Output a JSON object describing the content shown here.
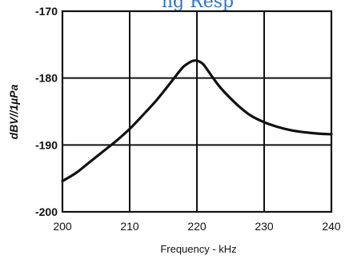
{
  "header": {
    "partial_title": "ng Resp"
  },
  "chart_data": {
    "type": "line",
    "title": "",
    "xlabel": "Frequency - kHz",
    "ylabel": "dBV//1µPa",
    "xlim": [
      200,
      240
    ],
    "ylim": [
      -200,
      -170
    ],
    "xticks": [
      200,
      210,
      220,
      230,
      240
    ],
    "yticks": [
      -170,
      -180,
      -190,
      -200
    ],
    "xtick_labels": [
      "200",
      "210",
      "220",
      "230",
      "240"
    ],
    "ytick_labels": [
      "-170",
      "-180",
      "-190",
      "-200"
    ],
    "grid": true,
    "series": [
      {
        "color": "#111111",
        "x": [
          200,
          202,
          204,
          206,
          208,
          210,
          212,
          214,
          216,
          217,
          218,
          219,
          219.5,
          220,
          220.5,
          221,
          222,
          223,
          224,
          226,
          228,
          230,
          232,
          234,
          236,
          238,
          240
        ],
        "y": [
          -195.4,
          -194.2,
          -192.6,
          -191.0,
          -189.4,
          -187.6,
          -185.5,
          -183.3,
          -180.8,
          -179.5,
          -178.3,
          -177.6,
          -177.4,
          -177.4,
          -177.6,
          -178.0,
          -179.4,
          -180.8,
          -182.0,
          -184.0,
          -185.6,
          -186.6,
          -187.3,
          -187.8,
          -188.1,
          -188.3,
          -188.4
        ]
      }
    ]
  }
}
